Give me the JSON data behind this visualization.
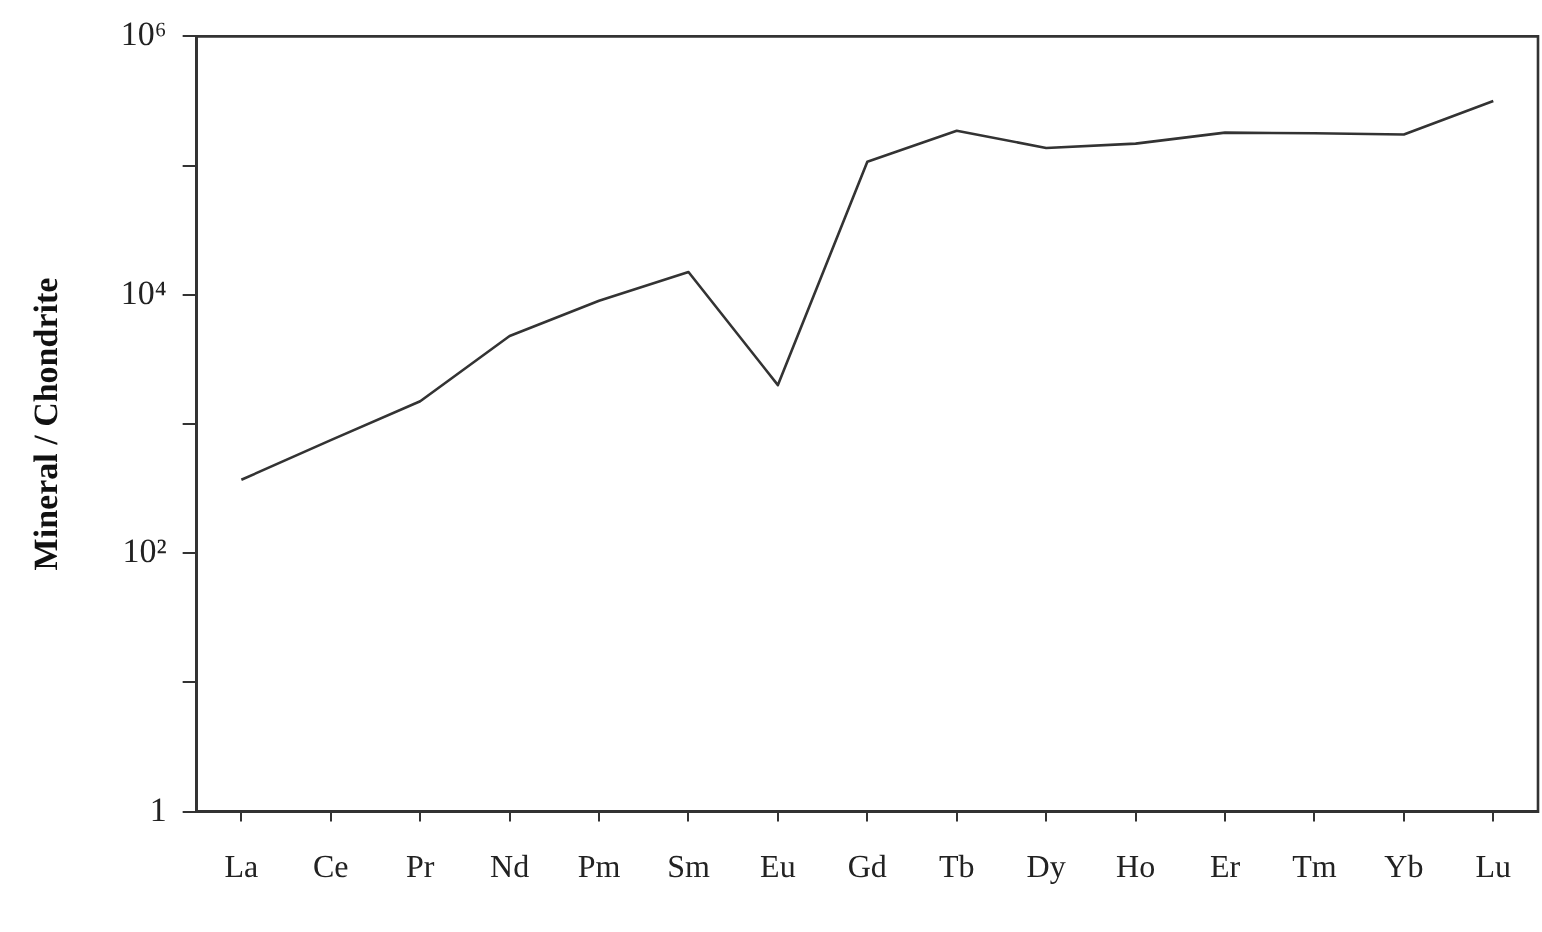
{
  "chart_data": {
    "type": "line",
    "ylabel": "Mineral / Chondrite",
    "categories": [
      "La",
      "Ce",
      "Pr",
      "Nd",
      "Pm",
      "Sm",
      "Eu",
      "Gd",
      "Tb",
      "Dy",
      "Ho",
      "Er",
      "Tm",
      "Yb",
      "Lu"
    ],
    "series": [
      {
        "color": "#333333",
        "values": [
          370,
          750,
          1500,
          4800,
          9000,
          15000,
          2000,
          107000,
          186000,
          137000,
          148000,
          180000,
          178000,
          174000,
          316000
        ]
      }
    ],
    "log": "y",
    "ylim": [
      1,
      1000000
    ],
    "yticks": [
      1,
      {
        "value": 10,
        "label": null
      },
      {
        "value": 100,
        "label": "10²"
      },
      {
        "value": 1000,
        "label": null
      },
      {
        "value": 10000,
        "label": "10⁴"
      },
      {
        "value": 100000,
        "label": null
      },
      {
        "value": 1000000,
        "label": "10⁶"
      }
    ],
    "grid": false,
    "legend": false,
    "marker": "none",
    "line_style": "solid"
  }
}
